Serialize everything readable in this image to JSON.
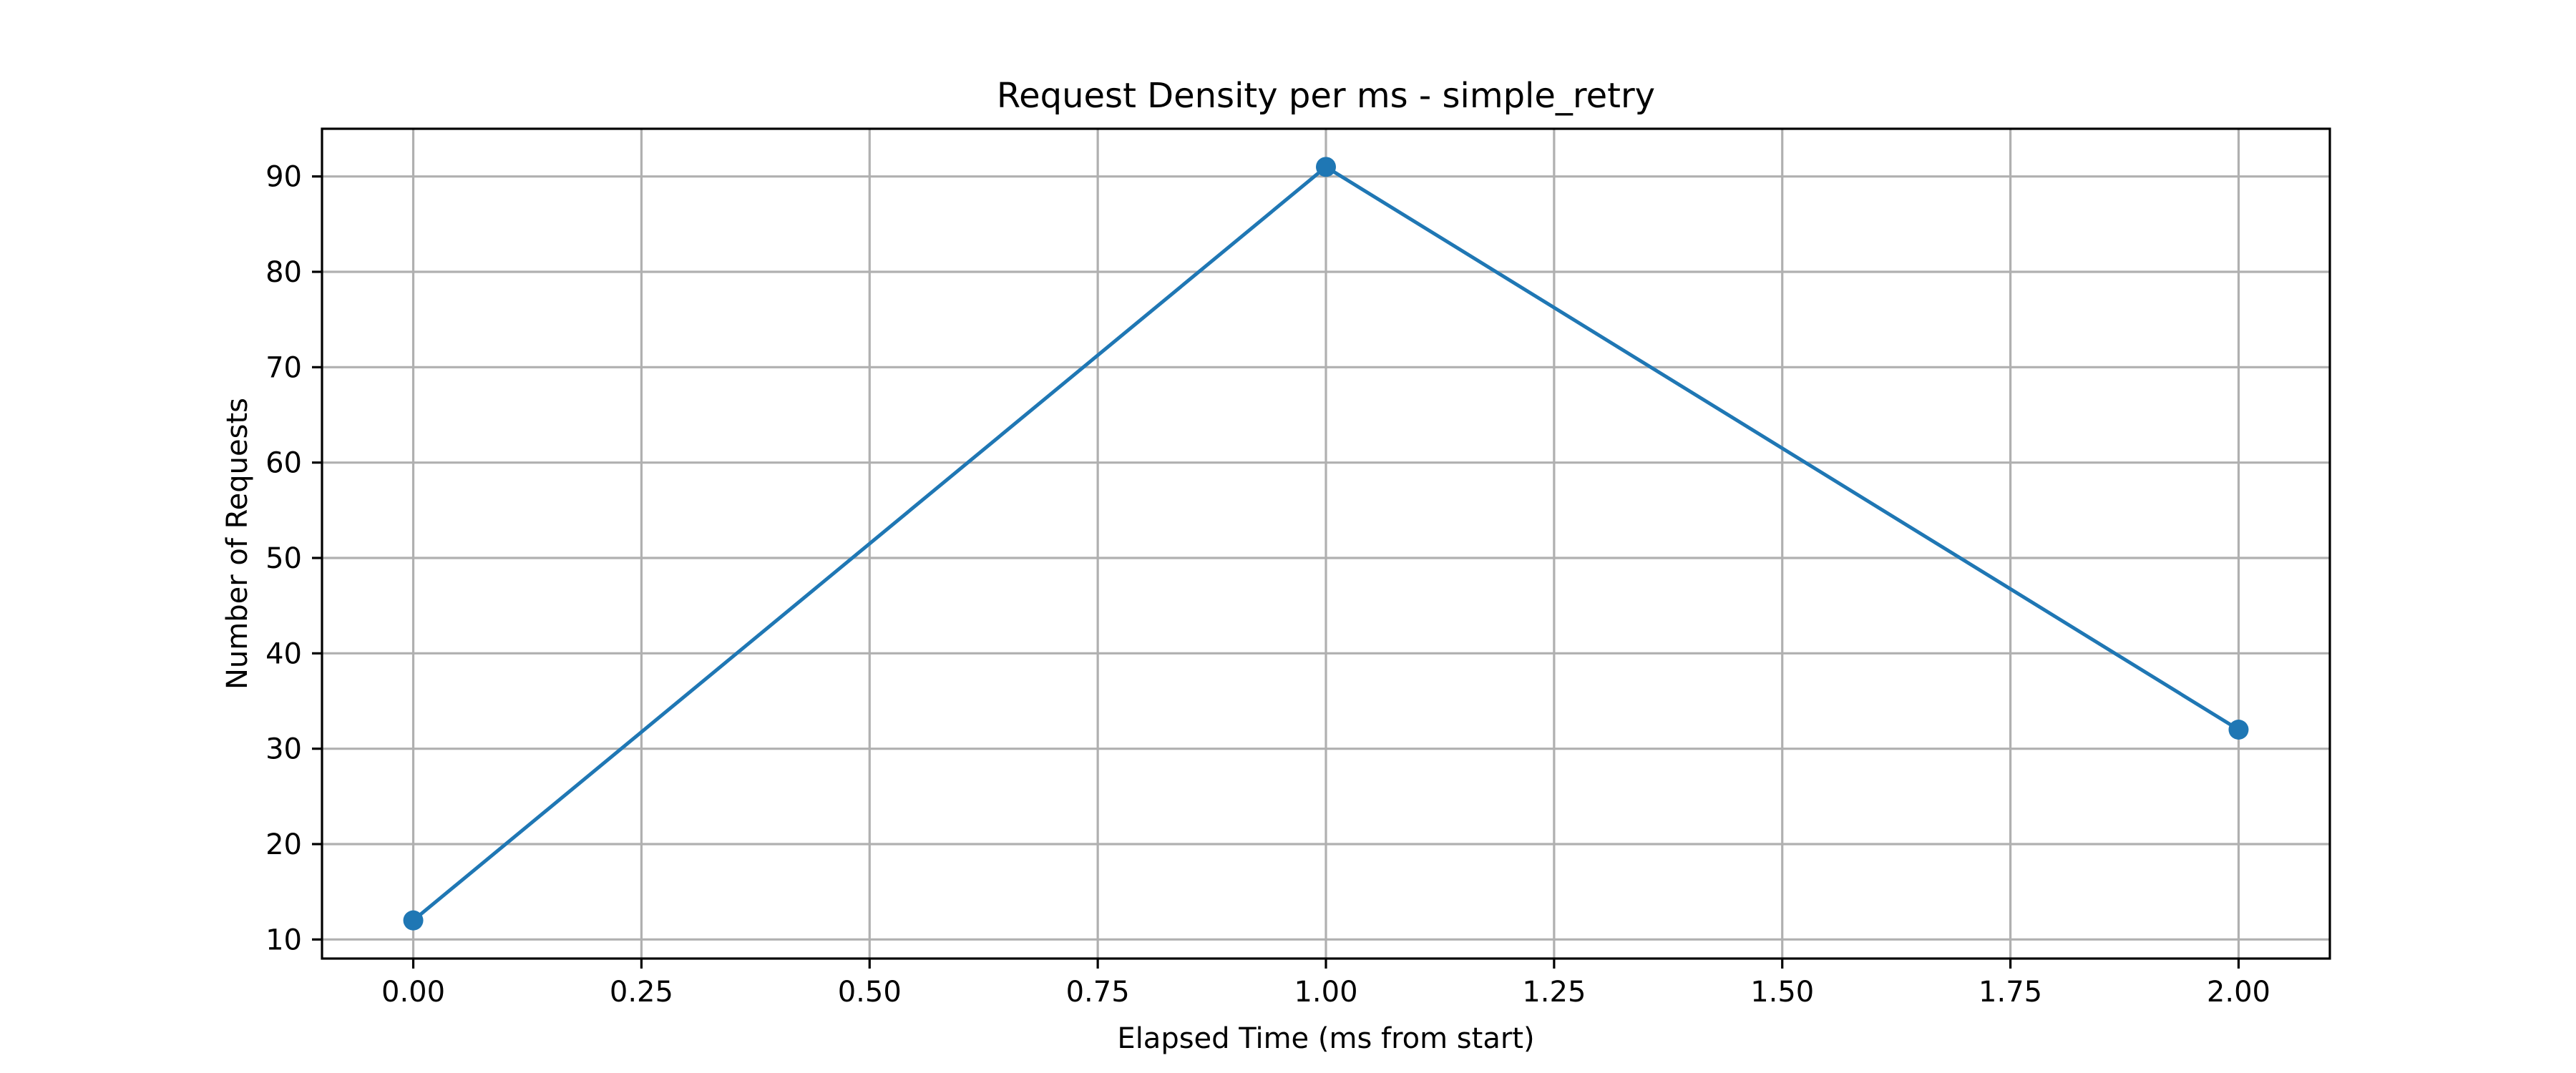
{
  "chart_data": {
    "type": "line",
    "title": "Request Density per ms - simple_retry",
    "xlabel": "Elapsed Time (ms from start)",
    "ylabel": "Number of Requests",
    "xlim": [
      -0.1,
      2.1
    ],
    "ylim": [
      8,
      95
    ],
    "xticks": [
      0.0,
      0.25,
      0.5,
      0.75,
      1.0,
      1.25,
      1.5,
      1.75,
      2.0
    ],
    "xtick_labels": [
      "0.00",
      "0.25",
      "0.50",
      "0.75",
      "1.00",
      "1.25",
      "1.50",
      "1.75",
      "2.00"
    ],
    "yticks": [
      10,
      20,
      30,
      40,
      50,
      60,
      70,
      80,
      90
    ],
    "ytick_labels": [
      "10",
      "20",
      "30",
      "40",
      "50",
      "60",
      "70",
      "80",
      "90"
    ],
    "grid": true,
    "series": [
      {
        "x": [
          0,
          1,
          2
        ],
        "values": [
          12,
          91,
          32
        ],
        "color": "#1f77b4",
        "marker": "circle"
      }
    ]
  }
}
